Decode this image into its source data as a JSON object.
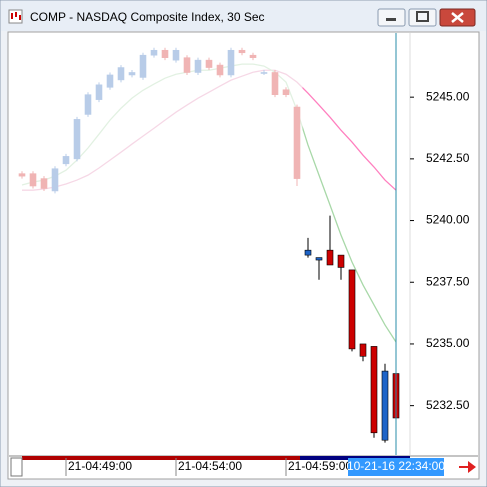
{
  "window": {
    "title": "COMP - NASDAQ Composite Index, 30 Sec"
  },
  "chart_data": {
    "type": "candlestick",
    "categories": [
      null,
      null,
      null,
      null,
      "21-04:49:00",
      null,
      null,
      null,
      null,
      null,
      null,
      null,
      null,
      null,
      "21-04:54:00",
      null,
      null,
      null,
      null,
      null,
      null,
      null,
      null,
      null,
      "21-04:59:00",
      null,
      null,
      null,
      null,
      null,
      null,
      null,
      null,
      null,
      null
    ],
    "open": [
      5241.9,
      5241.9,
      5241.7,
      5241.2,
      5242.3,
      5242.5,
      5244.3,
      5244.9,
      5245.4,
      5245.7,
      5245.9,
      5245.8,
      5246.7,
      5246.9,
      5246.5,
      5246.6,
      5246.0,
      5246.5,
      5246.3,
      5245.9,
      5246.9,
      5246.7,
      5246.0,
      5246.0,
      5245.3,
      5244.6,
      5238.6,
      5238.4,
      5238.8,
      5238.6,
      5238.0,
      5235.0,
      5234.9,
      5231.1,
      5233.8
    ],
    "high": [
      5242.0,
      5242.0,
      5241.8,
      5242.2,
      5242.7,
      5244.2,
      5245.2,
      5245.6,
      5246.0,
      5246.3,
      5246.1,
      5246.8,
      5247.0,
      5247.0,
      5247.0,
      5246.7,
      5246.6,
      5246.6,
      5246.4,
      5247.0,
      5247.0,
      5246.8,
      5246.1,
      5246.1,
      5245.4,
      5244.7,
      5239.3,
      5238.5,
      5240.2,
      5238.6,
      5238.0,
      5235.0,
      5234.9,
      5234.2,
      5233.9
    ],
    "low": [
      5241.7,
      5241.3,
      5241.2,
      5241.1,
      5242.2,
      5242.4,
      5244.2,
      5244.8,
      5245.3,
      5245.6,
      5245.8,
      5245.7,
      5246.6,
      5246.5,
      5246.4,
      5245.9,
      5245.9,
      5246.1,
      5245.8,
      5245.8,
      5246.7,
      5246.5,
      5245.9,
      5245.0,
      5245.0,
      5241.4,
      5238.5,
      5237.6,
      5238.2,
      5237.6,
      5234.7,
      5234.3,
      5231.2,
      5231.0,
      5231.8
    ],
    "close": [
      5241.8,
      5241.4,
      5241.3,
      5242.1,
      5242.6,
      5244.1,
      5245.1,
      5245.5,
      5245.9,
      5246.2,
      5246.0,
      5246.7,
      5246.9,
      5246.6,
      5246.9,
      5246.0,
      5246.5,
      5246.2,
      5245.9,
      5246.9,
      5246.8,
      5246.6,
      5246.0,
      5245.1,
      5245.1,
      5241.7,
      5238.8,
      5238.5,
      5238.2,
      5238.1,
      5234.8,
      5234.5,
      5231.4,
      5233.9,
      5232.0
    ],
    "up_color": "#1e64c8",
    "down_color": "#cc0000",
    "up_faded_color": "#b8cce8",
    "down_faded_color": "#f0b4b4",
    "highlight_from": 26,
    "series": [
      {
        "color": "#ff7fbf",
        "faded_color": "#f6d8e6",
        "values": [
          5241.23,
          5241.23,
          5241.28,
          5241.36,
          5241.48,
          5241.64,
          5241.84,
          5242.13,
          5242.45,
          5242.77,
          5243.1,
          5243.42,
          5243.74,
          5244.07,
          5244.39,
          5244.68,
          5244.96,
          5245.2,
          5245.45,
          5245.69,
          5245.85,
          5246.01,
          5246.09,
          5246.09,
          5245.93,
          5245.61,
          5245.16,
          5244.68,
          5244.19,
          5243.66,
          5243.18,
          5242.65,
          5242.17,
          5241.64,
          5241.23
        ]
      },
      {
        "color": "#a8d8a8",
        "faded_color": "#e2f1e2",
        "values": [
          5241.44,
          5241.56,
          5241.64,
          5241.8,
          5242.04,
          5242.45,
          5242.94,
          5243.5,
          5244.07,
          5244.55,
          5244.96,
          5245.28,
          5245.53,
          5245.77,
          5245.93,
          5246.01,
          5246.09,
          5246.09,
          5246.17,
          5246.26,
          5246.34,
          5246.34,
          5246.26,
          5246.01,
          5245.61,
          5244.47,
          5243.06,
          5241.84,
          5240.63,
          5239.41,
          5238.32,
          5237.39,
          5236.58,
          5235.77,
          5235.08
        ]
      }
    ],
    "ylim": [
      5230.5,
      5247.6
    ],
    "yticks": [
      {
        "value": 5232.5,
        "label": "5232.50"
      },
      {
        "value": 5235,
        "label": "5235.00"
      },
      {
        "value": 5237.5,
        "label": "5237.50"
      },
      {
        "value": 5240,
        "label": "5240.00"
      },
      {
        "value": 5242.5,
        "label": "5242.50"
      },
      {
        "value": 5245,
        "label": "5245.00"
      }
    ],
    "cursor_label": "10-21-16 22:34:00"
  }
}
